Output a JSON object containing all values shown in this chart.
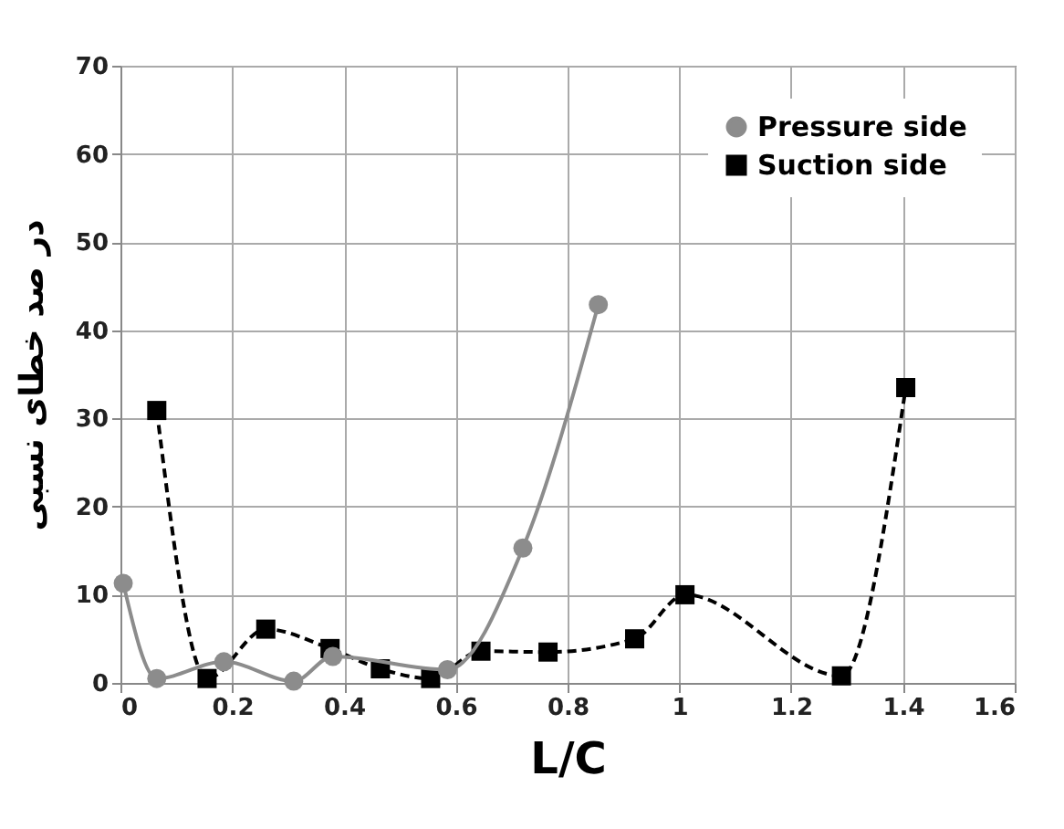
{
  "chart_data": {
    "type": "line",
    "xlabel": "L/C",
    "ylabel": "در صد خطای نسبی",
    "xlim": [
      0,
      1.6
    ],
    "xticks": [
      0,
      0.2,
      0.4,
      0.6,
      0.8,
      1,
      1.2,
      1.4,
      1.6
    ],
    "ylim": [
      0,
      70
    ],
    "yticks": [
      0,
      10,
      20,
      30,
      40,
      50,
      60,
      70
    ],
    "grid": true,
    "legend": "top right",
    "series": [
      {
        "name": "Pressure side",
        "color": "#8c8c8c",
        "marker": "circle",
        "line_style": "solid",
        "x": [
          0.005,
          0.065,
          0.185,
          0.31,
          0.38,
          0.585,
          0.72,
          0.855
        ],
        "values": [
          11.3,
          0.5,
          2.4,
          0.2,
          3,
          1.5,
          15.3,
          42.9
        ]
      },
      {
        "name": "Suction side",
        "color": "#000000",
        "marker": "square",
        "line_style": "dashed",
        "x": [
          0.065,
          0.155,
          0.26,
          0.375,
          0.465,
          0.555,
          0.645,
          0.765,
          0.92,
          1.01,
          1.29,
          1.405
        ],
        "values": [
          30.9,
          0.5,
          6.1,
          3.9,
          1.6,
          0.5,
          3.6,
          3.5,
          5,
          10,
          0.8,
          33.5
        ]
      }
    ]
  }
}
